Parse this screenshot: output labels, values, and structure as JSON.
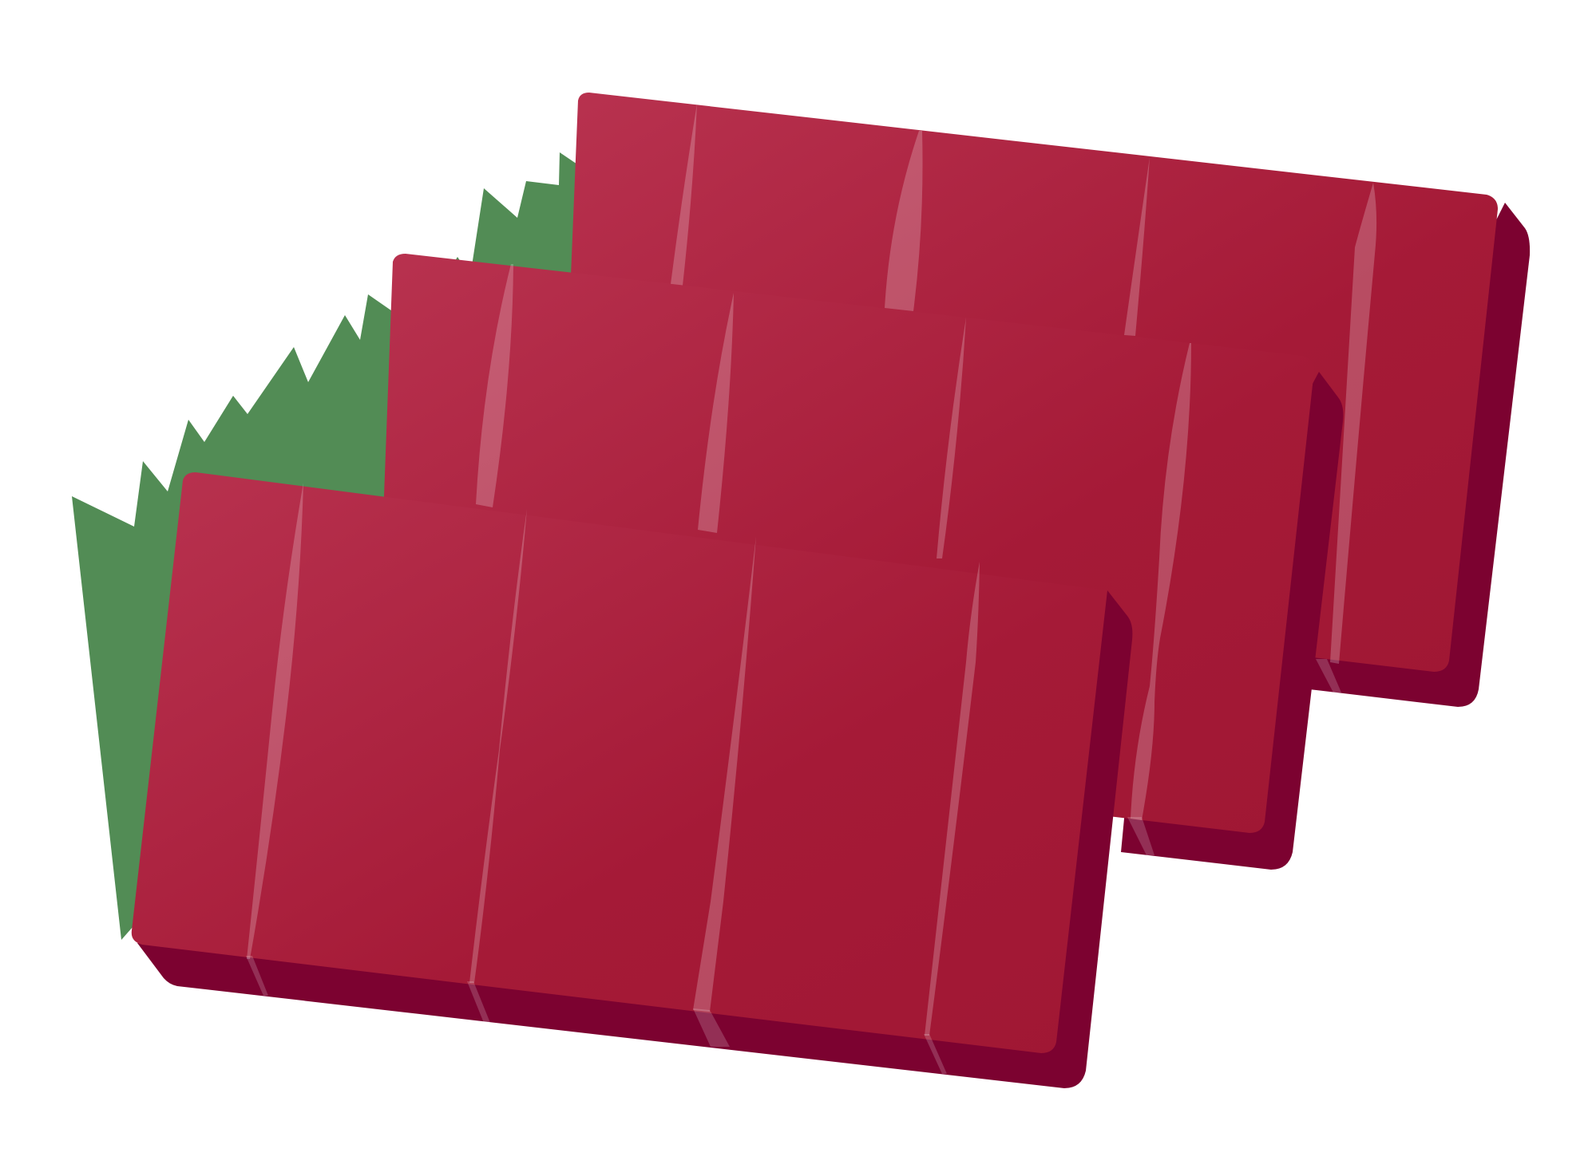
{
  "illustration": {
    "subject": "tuna-sashimi-slices-on-green-leaf",
    "slice_count": 3,
    "colors": {
      "background": "#ffffff",
      "leaf": "#528c55",
      "tuna_light": "#b8324f",
      "tuna_dark": "#a01734",
      "tuna_side": "#7c0230",
      "streak": "#ffffff"
    }
  }
}
